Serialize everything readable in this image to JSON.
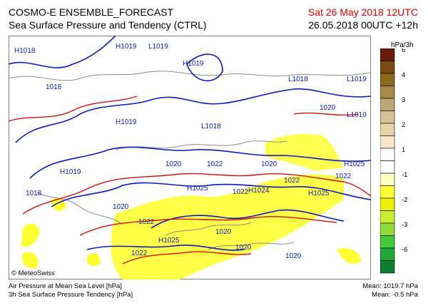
{
  "header": {
    "title": "COSMO-E ENSEMBLE_FORECAST",
    "subtitle": "Sea Surface Pressure and Tendency (CTRL)",
    "valid_time": "Sat 26 May 2018 12UTC",
    "run_info": "26.05.2018 00UTC +12h"
  },
  "legend": {
    "unit": "hPa/3h",
    "classes": [
      {
        "label": "6",
        "color": "#6b1a10"
      },
      {
        "label": "",
        "color": "#7a4a14"
      },
      {
        "label": "4",
        "color": "#8a6b1e"
      },
      {
        "label": "",
        "color": "#a58a4a"
      },
      {
        "label": "3",
        "color": "#bea77a"
      },
      {
        "label": "",
        "color": "#d6c199"
      },
      {
        "label": "2",
        "color": "#e7d3a7"
      },
      {
        "label": "",
        "color": "#f7e7c8"
      },
      {
        "label": "1",
        "color": "#ffffff"
      },
      {
        "label": "",
        "color": "#ffffff"
      },
      {
        "label": "-1",
        "color": "#ffffbf"
      },
      {
        "label": "",
        "color": "#ffff33"
      },
      {
        "label": "-2",
        "color": "#eef000"
      },
      {
        "label": "",
        "color": "#c8ee30"
      },
      {
        "label": "-3",
        "color": "#8fdc3a"
      },
      {
        "label": "",
        "color": "#44c93a"
      },
      {
        "label": "-6",
        "color": "#1fa83a"
      },
      {
        "label": "",
        "color": "#0a8030"
      }
    ]
  },
  "map": {
    "pressure_labels": [
      {
        "text": "H1018"
      },
      {
        "text": "H1019"
      },
      {
        "text": "L1019"
      },
      {
        "text": "H1019"
      },
      {
        "text": "L1018"
      },
      {
        "text": "L1019"
      },
      {
        "text": "1018"
      },
      {
        "text": "1020"
      },
      {
        "text": "H1019"
      },
      {
        "text": "L1018"
      },
      {
        "text": "L1019"
      },
      {
        "text": "H1019"
      },
      {
        "text": "1018"
      },
      {
        "text": "1020"
      },
      {
        "text": "1022"
      },
      {
        "text": "1020"
      },
      {
        "text": "1022"
      },
      {
        "text": "H1025"
      },
      {
        "text": "H1025"
      },
      {
        "text": "1022"
      },
      {
        "text": "H1024"
      },
      {
        "text": "1022"
      },
      {
        "text": "H1025"
      },
      {
        "text": "1020"
      },
      {
        "text": "1022"
      },
      {
        "text": "H1025"
      },
      {
        "text": "1020"
      },
      {
        "text": "1022"
      },
      {
        "text": "1020"
      },
      {
        "text": "1020"
      }
    ],
    "copyright": "© MeteoSwiss"
  },
  "footer": {
    "line1": "Air Pressure at Mean Sea Level [hPa]",
    "line2": "3h Sea Surface Pressure Tendency [hPa]",
    "mean_pressure": "Mean: 1019.7 hPa",
    "mean_tendency": "Mean:  -0.5 hPa"
  }
}
